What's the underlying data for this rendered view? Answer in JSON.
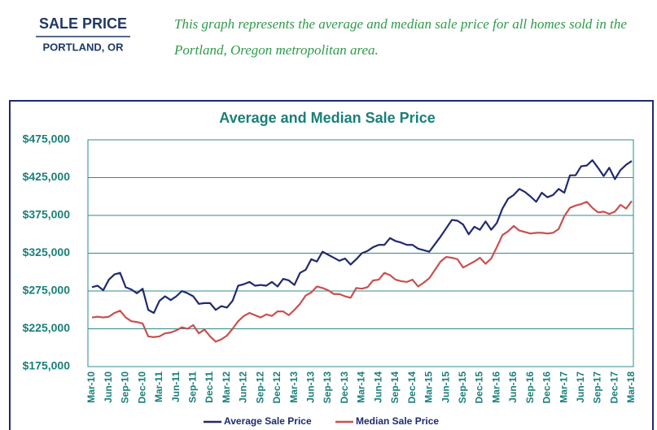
{
  "header": {
    "title": "SALE PRICE",
    "subtitle": "PORTLAND, OR",
    "description": "This graph represents the average and median sale price for all homes sold in the Portland, Oregon metropolitan area."
  },
  "chart_data": {
    "type": "line",
    "title": "Average and Median Sale Price",
    "categories": [
      "Mar-10",
      null,
      null,
      "Jun-10",
      null,
      null,
      "Sep-10",
      null,
      null,
      "Dec-10",
      null,
      null,
      "Mar-11",
      null,
      null,
      "Jun-11",
      null,
      null,
      "Sep-11",
      null,
      null,
      "Dec-11",
      null,
      null,
      "Mar-12",
      null,
      null,
      "Jun-12",
      null,
      null,
      "Sep-12",
      null,
      null,
      "Dec-12",
      null,
      null,
      "Mar-13",
      null,
      null,
      "Jun-13",
      null,
      null,
      "Sep-13",
      null,
      null,
      "Dec-13",
      null,
      null,
      "Mar-14",
      null,
      null,
      "Jun-14",
      null,
      null,
      "Sep-14",
      null,
      null,
      "Dec-14",
      null,
      null,
      "Mar-15",
      null,
      null,
      "Jun-15",
      null,
      null,
      "Sep-15",
      null,
      null,
      "Dec-15",
      null,
      null,
      "Mar-16",
      null,
      null,
      "Jun-16",
      null,
      null,
      "Sep-16",
      null,
      null,
      "Dec-16",
      null,
      null,
      "Mar-17",
      null,
      null,
      "Jun-17",
      null,
      null,
      "Sep-17",
      null,
      null,
      "Dec-17",
      null,
      null,
      "Mar-18"
    ],
    "series": [
      {
        "name": "Average Sale Price",
        "color": "#1f2a6e",
        "values": [
          280000,
          282000,
          276000,
          290000,
          297000,
          299000,
          280000,
          277000,
          272000,
          278000,
          250000,
          246000,
          262000,
          268000,
          263000,
          268000,
          275000,
          272000,
          268000,
          258000,
          259000,
          259000,
          250000,
          255000,
          253000,
          262000,
          282000,
          284000,
          287000,
          282000,
          283000,
          282000,
          287000,
          281000,
          291000,
          289000,
          283000,
          299000,
          303000,
          317000,
          314000,
          327000,
          323000,
          319000,
          315000,
          318000,
          310000,
          317000,
          325000,
          328000,
          333000,
          336000,
          336000,
          345000,
          341000,
          339000,
          336000,
          336000,
          331000,
          329000,
          327000,
          337000,
          347000,
          358000,
          369000,
          368000,
          363000,
          350000,
          360000,
          356000,
          367000,
          356000,
          365000,
          384000,
          397000,
          402000,
          410000,
          406000,
          400000,
          393000,
          405000,
          399000,
          402000,
          410000,
          405000,
          428000,
          428000,
          440000,
          441000,
          448000,
          438000,
          427000,
          438000,
          423000,
          435000,
          442000,
          447000
        ]
      },
      {
        "name": "Median Sale Price",
        "color": "#c8504f",
        "values": [
          240000,
          241000,
          240000,
          241000,
          246000,
          249000,
          240000,
          235000,
          234000,
          232000,
          215000,
          214000,
          215000,
          219000,
          220000,
          223000,
          227000,
          225000,
          230000,
          219000,
          224000,
          215000,
          208000,
          211000,
          216000,
          225000,
          235000,
          242000,
          246000,
          243000,
          240000,
          244000,
          242000,
          248000,
          248000,
          243000,
          250000,
          258000,
          269000,
          273000,
          281000,
          279000,
          276000,
          271000,
          271000,
          268000,
          266000,
          279000,
          278000,
          280000,
          289000,
          290000,
          299000,
          296000,
          290000,
          288000,
          287000,
          290000,
          281000,
          286000,
          292000,
          303000,
          314000,
          320000,
          319000,
          317000,
          306000,
          310000,
          314000,
          319000,
          311000,
          318000,
          333000,
          349000,
          354000,
          361000,
          355000,
          353000,
          351000,
          352000,
          352000,
          351000,
          352000,
          357000,
          374000,
          385000,
          388000,
          390000,
          393000,
          385000,
          379000,
          380000,
          377000,
          380000,
          389000,
          384000,
          394000
        ]
      }
    ],
    "ylim": [
      175000,
      475000
    ],
    "yticks": [
      {
        "value": 175000,
        "label": "$175,000"
      },
      {
        "value": 225000,
        "label": "$225,000"
      },
      {
        "value": 275000,
        "label": "$275,000"
      },
      {
        "value": 325000,
        "label": "$325,000"
      },
      {
        "value": 375000,
        "label": "$375,000"
      },
      {
        "value": 425000,
        "label": "$425,000"
      },
      {
        "value": 475000,
        "label": "$475,000"
      }
    ],
    "grid": true
  }
}
